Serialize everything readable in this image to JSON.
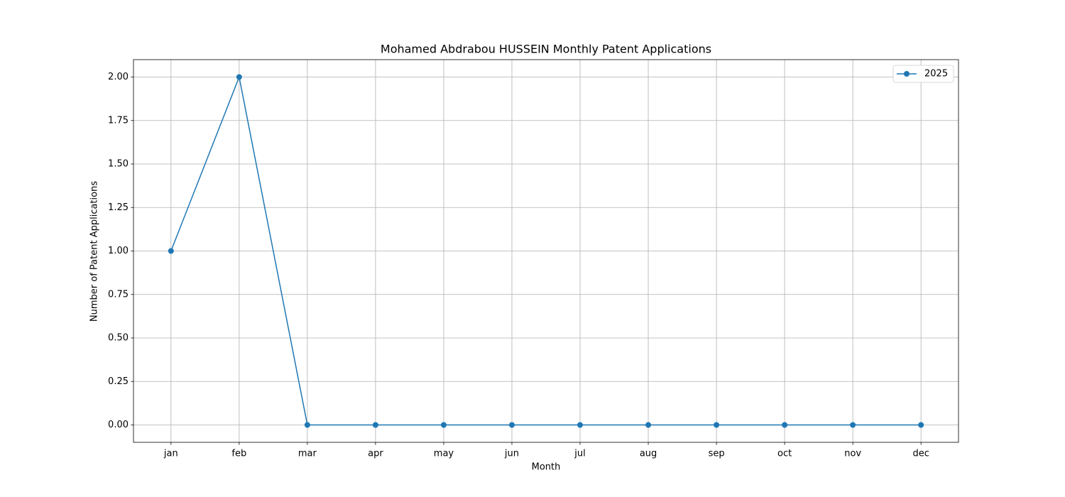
{
  "chart_data": {
    "type": "line",
    "title": "Mohamed Abdrabou HUSSEIN Monthly Patent Applications",
    "x_label": "Month",
    "y_label": "Number of Patent Applications",
    "categories": [
      "jan",
      "feb",
      "mar",
      "apr",
      "may",
      "jun",
      "jul",
      "aug",
      "sep",
      "oct",
      "nov",
      "dec"
    ],
    "series": [
      {
        "name": "2025",
        "color": "#1f77b4",
        "values": [
          1,
          2,
          0,
          0,
          0,
          0,
          0,
          0,
          0,
          0,
          0,
          0
        ]
      }
    ],
    "ylim": [
      -0.1,
      2.1
    ],
    "yticks": [
      {
        "value": 0,
        "label": "0.00"
      },
      {
        "value": 0.25,
        "label": "0.25"
      },
      {
        "value": 0.5,
        "label": "0.50"
      },
      {
        "value": 0.75,
        "label": "0.75"
      },
      {
        "value": 1,
        "label": "1.00"
      },
      {
        "value": 1.25,
        "label": "1.25"
      },
      {
        "value": 1.5,
        "label": "1.50"
      },
      {
        "value": 1.75,
        "label": "1.75"
      },
      {
        "value": 2,
        "label": "2.00"
      }
    ],
    "grid": true,
    "legend": "upper right"
  }
}
